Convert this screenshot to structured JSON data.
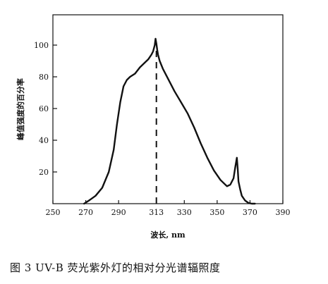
{
  "chart_data": {
    "type": "line",
    "xlabel": "波长, nm",
    "ylabel": "峰值强度的百分率",
    "caption": "图 3   UV-B 荧光紫外灯的相对分光谱辐照度",
    "xlim": [
      250,
      390
    ],
    "ylim": [
      0,
      105
    ],
    "x_ticks": [
      "250",
      "270",
      "290",
      "313",
      "330",
      "350",
      "370",
      "390"
    ],
    "x_tick_values": [
      250,
      270,
      290,
      313,
      330,
      350,
      370,
      390
    ],
    "y_ticks": [
      "20",
      "40",
      "60",
      "80",
      "100"
    ],
    "y_tick_values": [
      20,
      40,
      60,
      80,
      100
    ],
    "peak_marker_x": 313,
    "grid": false,
    "series": [
      {
        "x": [
          269,
          272,
          276,
          280,
          284,
          287,
          289,
          291,
          293,
          295,
          297,
          300,
          303,
          306,
          308,
          310,
          311,
          312,
          312.5,
          313,
          313.5,
          314,
          315,
          317,
          320,
          324,
          328,
          332,
          336,
          340,
          344,
          348,
          352,
          356,
          358,
          360,
          361,
          362,
          362.5,
          363,
          364,
          365,
          367,
          369,
          371,
          373
        ],
        "y": [
          0,
          2,
          5,
          10,
          20,
          34,
          50,
          64,
          74,
          78,
          80,
          82,
          86,
          89,
          91,
          94,
          96,
          100,
          104,
          101,
          97,
          94,
          90,
          85,
          79,
          71,
          64,
          57,
          48,
          38,
          29,
          21,
          15,
          11,
          12,
          16,
          23,
          29,
          22,
          14,
          9,
          5,
          2,
          0.5,
          0,
          0
        ]
      }
    ]
  }
}
